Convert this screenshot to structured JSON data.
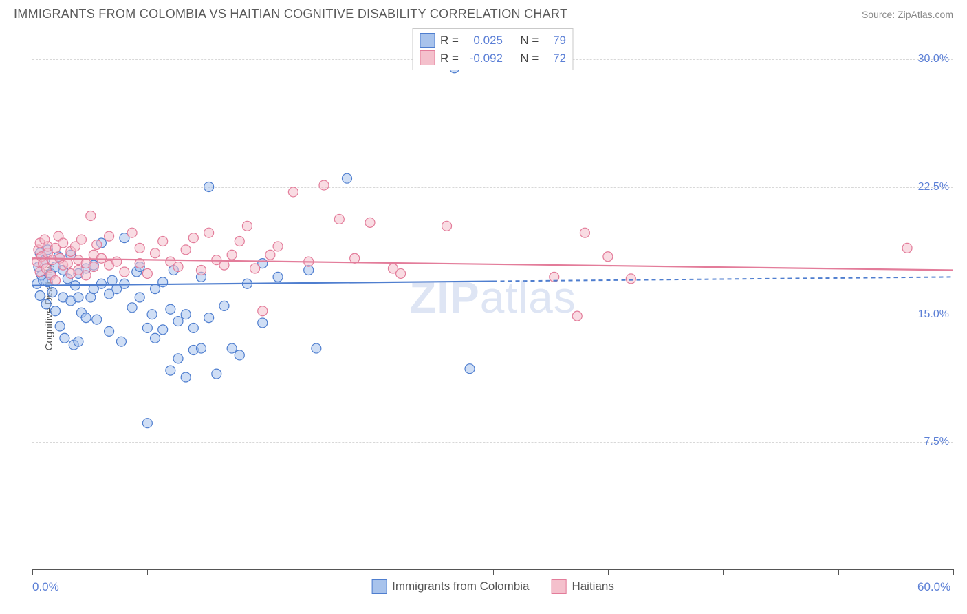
{
  "title": "IMMIGRANTS FROM COLOMBIA VS HAITIAN COGNITIVE DISABILITY CORRELATION CHART",
  "source": "Source: ZipAtlas.com",
  "watermark": "ZIPatlas",
  "chart": {
    "type": "scatter",
    "ylabel": "Cognitive Disability",
    "xlim": [
      0,
      60
    ],
    "ylim": [
      0,
      32
    ],
    "x_ticks": [
      0,
      7.5,
      15,
      22.5,
      30,
      37.5,
      45,
      52.5,
      60
    ],
    "x_axis_labels": [
      {
        "v": 0,
        "t": "0.0%"
      },
      {
        "v": 60,
        "t": "60.0%"
      }
    ],
    "y_gridlines": [
      7.5,
      15.0,
      22.5,
      30.0
    ],
    "y_tick_labels": [
      "7.5%",
      "15.0%",
      "22.5%",
      "30.0%"
    ],
    "grid_color": "#d8d8d8",
    "background_color": "#ffffff",
    "marker_radius": 7,
    "marker_stroke_width": 1.2,
    "marker_opacity": 0.55,
    "series": [
      {
        "name": "Immigrants from Colombia",
        "fill": "#a8c3ec",
        "stroke": "#4f7ecf",
        "R": "0.025",
        "N": "79",
        "trend": {
          "y0": 16.7,
          "y1": 17.2,
          "x_solid_end": 30
        },
        "points": [
          [
            0.3,
            16.8
          ],
          [
            0.4,
            17.8
          ],
          [
            0.5,
            18.6
          ],
          [
            0.5,
            16.1
          ],
          [
            0.6,
            17.3
          ],
          [
            0.7,
            17.0
          ],
          [
            0.8,
            18.2
          ],
          [
            0.9,
            15.6
          ],
          [
            1.0,
            16.9
          ],
          [
            1.0,
            18.8
          ],
          [
            1.2,
            17.4
          ],
          [
            1.3,
            16.3
          ],
          [
            1.5,
            15.2
          ],
          [
            1.5,
            17.8
          ],
          [
            1.7,
            18.4
          ],
          [
            1.8,
            14.3
          ],
          [
            2.0,
            16.0
          ],
          [
            2.0,
            17.6
          ],
          [
            2.1,
            13.6
          ],
          [
            2.3,
            17.1
          ],
          [
            2.5,
            15.8
          ],
          [
            2.5,
            18.5
          ],
          [
            2.7,
            13.2
          ],
          [
            2.8,
            16.7
          ],
          [
            3.0,
            16.0
          ],
          [
            3.0,
            17.4
          ],
          [
            3.0,
            13.4
          ],
          [
            3.2,
            15.1
          ],
          [
            3.5,
            14.8
          ],
          [
            3.5,
            17.7
          ],
          [
            3.8,
            16.0
          ],
          [
            4.0,
            16.5
          ],
          [
            4.0,
            17.9
          ],
          [
            4.2,
            14.7
          ],
          [
            4.5,
            16.8
          ],
          [
            4.5,
            19.2
          ],
          [
            5.0,
            14.0
          ],
          [
            5.0,
            16.2
          ],
          [
            5.2,
            17.0
          ],
          [
            5.5,
            16.5
          ],
          [
            5.8,
            13.4
          ],
          [
            6.0,
            16.8
          ],
          [
            6.0,
            19.5
          ],
          [
            6.5,
            15.4
          ],
          [
            6.8,
            17.5
          ],
          [
            7.0,
            16.0
          ],
          [
            7.0,
            17.8
          ],
          [
            7.5,
            14.2
          ],
          [
            7.8,
            15.0
          ],
          [
            8.0,
            16.5
          ],
          [
            8.0,
            13.6
          ],
          [
            8.5,
            14.1
          ],
          [
            8.5,
            16.9
          ],
          [
            9.0,
            11.7
          ],
          [
            9.0,
            15.3
          ],
          [
            9.2,
            17.6
          ],
          [
            9.5,
            12.4
          ],
          [
            9.5,
            14.6
          ],
          [
            10.0,
            11.3
          ],
          [
            10.0,
            15.0
          ],
          [
            10.5,
            14.2
          ],
          [
            10.5,
            12.9
          ],
          [
            11.0,
            17.2
          ],
          [
            11.0,
            13.0
          ],
          [
            11.5,
            14.8
          ],
          [
            11.5,
            22.5
          ],
          [
            12.0,
            11.5
          ],
          [
            12.5,
            15.5
          ],
          [
            13.0,
            13.0
          ],
          [
            13.5,
            12.6
          ],
          [
            14.0,
            16.8
          ],
          [
            15.0,
            18.0
          ],
          [
            15.0,
            14.5
          ],
          [
            16.0,
            17.2
          ],
          [
            18.0,
            17.6
          ],
          [
            18.5,
            13.0
          ],
          [
            20.5,
            23.0
          ],
          [
            27.5,
            29.5
          ],
          [
            28.5,
            11.8
          ],
          [
            7.5,
            8.6
          ]
        ]
      },
      {
        "name": "Haitians",
        "fill": "#f4c0cc",
        "stroke": "#e37c9a",
        "R": "-0.092",
        "N": "72",
        "trend": {
          "y0": 18.3,
          "y1": 17.6,
          "x_solid_end": 60
        },
        "points": [
          [
            0.3,
            18.1
          ],
          [
            0.4,
            18.8
          ],
          [
            0.5,
            19.2
          ],
          [
            0.5,
            17.5
          ],
          [
            0.6,
            18.4
          ],
          [
            0.7,
            18.0
          ],
          [
            0.8,
            19.4
          ],
          [
            0.9,
            17.7
          ],
          [
            1.0,
            18.6
          ],
          [
            1.0,
            19.0
          ],
          [
            1.2,
            17.3
          ],
          [
            1.3,
            18.2
          ],
          [
            1.5,
            18.9
          ],
          [
            1.5,
            17.0
          ],
          [
            1.7,
            19.6
          ],
          [
            1.8,
            18.3
          ],
          [
            2.0,
            17.9
          ],
          [
            2.0,
            19.2
          ],
          [
            2.3,
            18.0
          ],
          [
            2.5,
            18.7
          ],
          [
            2.5,
            17.4
          ],
          [
            2.8,
            19.0
          ],
          [
            3.0,
            18.2
          ],
          [
            3.0,
            17.6
          ],
          [
            3.2,
            19.4
          ],
          [
            3.5,
            18.0
          ],
          [
            3.5,
            17.3
          ],
          [
            3.8,
            20.8
          ],
          [
            4.0,
            18.5
          ],
          [
            4.0,
            17.8
          ],
          [
            4.2,
            19.1
          ],
          [
            4.5,
            18.3
          ],
          [
            5.0,
            17.9
          ],
          [
            5.0,
            19.6
          ],
          [
            5.5,
            18.1
          ],
          [
            6.0,
            17.5
          ],
          [
            6.5,
            19.8
          ],
          [
            7.0,
            18.0
          ],
          [
            7.0,
            18.9
          ],
          [
            7.5,
            17.4
          ],
          [
            8.0,
            18.6
          ],
          [
            8.5,
            19.3
          ],
          [
            9.0,
            18.1
          ],
          [
            9.5,
            17.8
          ],
          [
            10.0,
            18.8
          ],
          [
            10.5,
            19.5
          ],
          [
            11.0,
            17.6
          ],
          [
            11.5,
            19.8
          ],
          [
            12.0,
            18.2
          ],
          [
            12.5,
            17.9
          ],
          [
            13.0,
            18.5
          ],
          [
            13.5,
            19.3
          ],
          [
            14.0,
            20.2
          ],
          [
            14.5,
            17.7
          ],
          [
            15.0,
            15.2
          ],
          [
            15.5,
            18.5
          ],
          [
            16.0,
            19.0
          ],
          [
            17.0,
            22.2
          ],
          [
            18.0,
            18.1
          ],
          [
            19.0,
            22.6
          ],
          [
            20.0,
            20.6
          ],
          [
            21.0,
            18.3
          ],
          [
            22.0,
            20.4
          ],
          [
            23.5,
            17.7
          ],
          [
            24.0,
            17.4
          ],
          [
            27.0,
            20.2
          ],
          [
            34.0,
            17.2
          ],
          [
            35.5,
            14.9
          ],
          [
            36.0,
            19.8
          ],
          [
            37.5,
            18.4
          ],
          [
            39.0,
            17.1
          ],
          [
            57.0,
            18.9
          ]
        ]
      }
    ]
  },
  "legend": {
    "r_label": "R =",
    "n_label": "N ="
  }
}
